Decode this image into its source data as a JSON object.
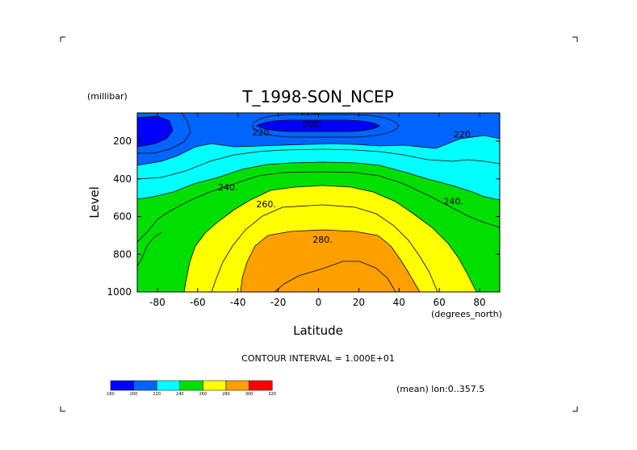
{
  "chart_data": {
    "type": "contour",
    "title": "T_1998-SON_NCEP",
    "xlabel": "Latitude",
    "x_units": "(degrees_north)",
    "ylabel": "Level",
    "y_units": "(millibar)",
    "xlim": [
      -90,
      90
    ],
    "ylim": [
      1000,
      50
    ],
    "y_inverted": true,
    "x_ticks": [
      "-80",
      "-60",
      "-40",
      "-20",
      "0",
      "20",
      "40",
      "60",
      "80"
    ],
    "y_ticks": [
      "200",
      "400",
      "600",
      "800",
      "1000"
    ],
    "contour_interval_text": "CONTOUR INTERVAL = 1.000E+01",
    "mean_text": "(mean) lon:0..357.5",
    "contour_labels": [
      {
        "text": "220.",
        "lat": -4,
        "level": 60
      },
      {
        "text": "200.",
        "lat": -3,
        "level": 125
      },
      {
        "text": "220.",
        "lat": -28,
        "level": 170
      },
      {
        "text": "220.",
        "lat": 72,
        "level": 180
      },
      {
        "text": "240.",
        "lat": -45,
        "level": 460
      },
      {
        "text": "240.",
        "lat": 67,
        "level": 535
      },
      {
        "text": "260.",
        "lat": -26,
        "level": 550
      },
      {
        "text": "280.",
        "lat": 2,
        "level": 740
      }
    ],
    "colorbar": {
      "ticks": [
        "180",
        "200",
        "220",
        "240",
        "260",
        "280",
        "300",
        "320"
      ],
      "colors": [
        "#0000ff",
        "#0064ff",
        "#00ffff",
        "#00e000",
        "#ffff00",
        "#ffa000",
        "#ff0000"
      ]
    },
    "fill_colors": {
      "c180": "#0000ff",
      "c200": "#0064ff",
      "c220": "#00ffff",
      "c240": "#00e000",
      "c260": "#ffff00",
      "c280": "#ffa000"
    }
  }
}
